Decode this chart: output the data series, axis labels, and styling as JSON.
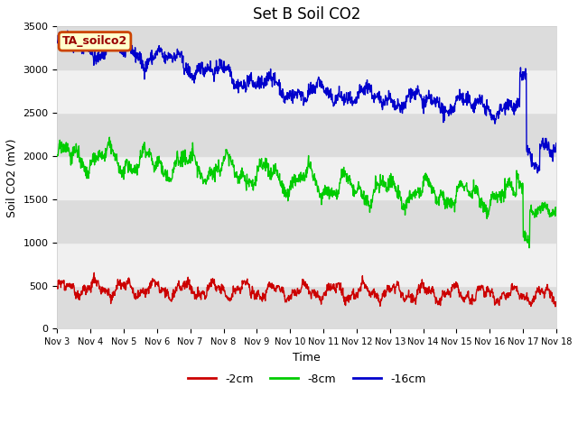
{
  "title": "Set B Soil CO2",
  "ylabel": "Soil CO2 (mV)",
  "xlabel": "Time",
  "tag_label": "TA_soilco2",
  "xlim": [
    0,
    15
  ],
  "ylim": [
    0,
    3500
  ],
  "yticks": [
    0,
    500,
    1000,
    1500,
    2000,
    2500,
    3000,
    3500
  ],
  "xtick_labels": [
    "Nov 3",
    "Nov 4",
    "Nov 5",
    "Nov 6",
    "Nov 7",
    "Nov 8",
    "Nov 9",
    "Nov 10",
    "Nov 11",
    "Nov 12",
    "Nov 13",
    "Nov 14",
    "Nov 15",
    "Nov 16",
    "Nov 17",
    "Nov 18"
  ],
  "legend_labels": [
    "-2cm",
    "-8cm",
    "-16cm"
  ],
  "line_colors": [
    "#cc0000",
    "#00cc00",
    "#0000cc"
  ],
  "background_color": "#ffffff",
  "plot_bg_light": "#f0f0f0",
  "plot_bg_dark": "#dcdcdc",
  "title_fontsize": 12,
  "axis_fontsize": 9,
  "tick_fontsize": 8,
  "legend_fontsize": 9,
  "tag_bg": "#ffffcc",
  "tag_border": "#cc4400",
  "tag_text_color": "#990000"
}
